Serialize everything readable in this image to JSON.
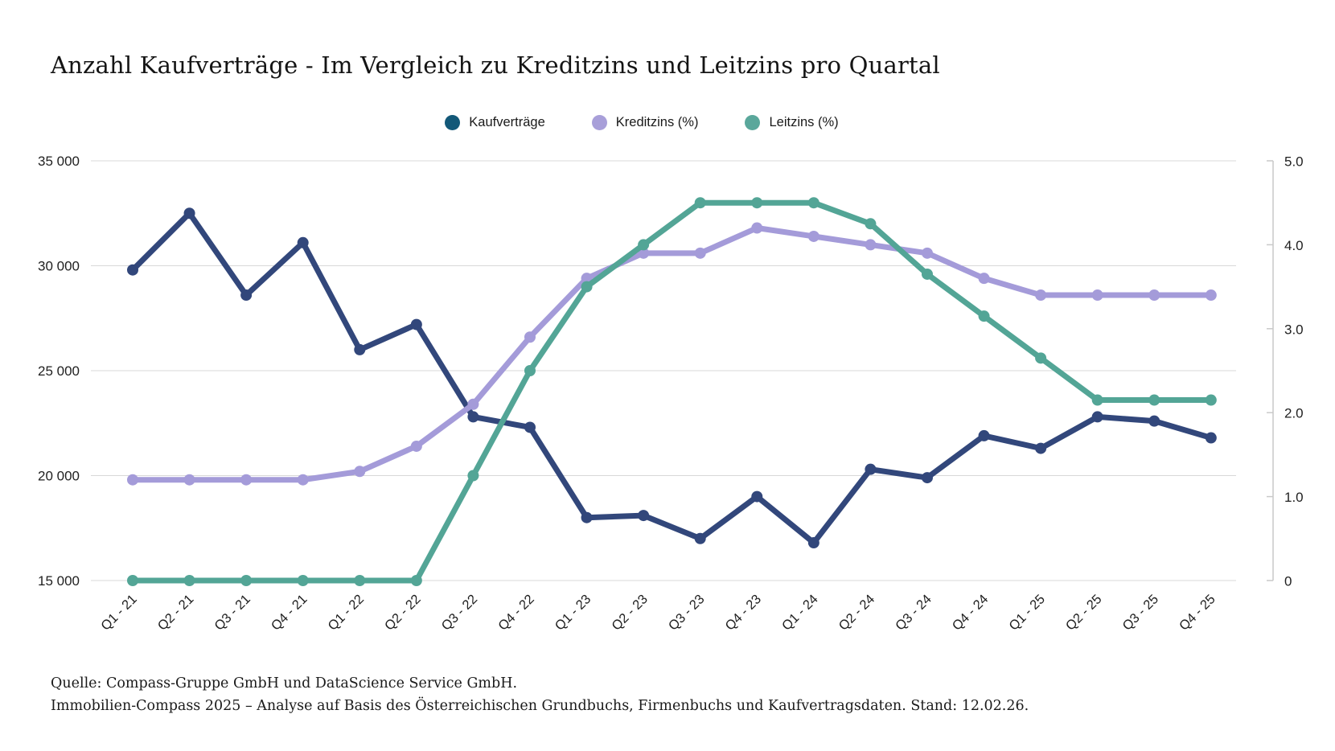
{
  "title": "Anzahl Kaufverträge - Im Vergleich zu Kreditzins und Leitzins pro Quartal",
  "legend": {
    "items": [
      {
        "label": "Kaufverträge",
        "color": "#135878"
      },
      {
        "label": "Kreditzins (%)",
        "color": "#a89fd9"
      },
      {
        "label": "Leitzins (%)",
        "color": "#5aa79b"
      }
    ]
  },
  "footer": {
    "line1": "Quelle: Compass-Gruppe GmbH und DataScience Service GmbH.",
    "line2": "Immobilien-Compass 2025 – Analyse auf Basis des Österreichischen Grundbuchs, Firmenbuchs und Kaufvertragsdaten. Stand: 12.02.26."
  },
  "chart_data": {
    "type": "line",
    "title": "Anzahl Kaufverträge - Im Vergleich zu Kreditzins und Leitzins pro Quartal",
    "categories": [
      "Q1 - 21",
      "Q2 - 21",
      "Q3 - 21",
      "Q4 - 21",
      "Q1 - 22",
      "Q2 - 22",
      "Q3 - 22",
      "Q4 - 22",
      "Q1 - 23",
      "Q2 - 23",
      "Q3 - 23",
      "Q4 - 23",
      "Q1 - 24",
      "Q2 - 24",
      "Q3 - 24",
      "Q4 - 24",
      "Q1 - 25",
      "Q2 - 25",
      "Q3 - 25",
      "Q4 - 25"
    ],
    "series": [
      {
        "name": "Kaufverträge",
        "axis": "left",
        "color": "#32477b",
        "values": [
          29800,
          32500,
          28600,
          31100,
          26000,
          27200,
          22800,
          22300,
          18000,
          18100,
          17000,
          19000,
          16800,
          20300,
          19900,
          21900,
          21300,
          22800,
          22600,
          21800
        ]
      },
      {
        "name": "Kreditzins (%)",
        "axis": "right",
        "color": "#a49bd9",
        "values": [
          1.2,
          1.2,
          1.2,
          1.2,
          1.3,
          1.6,
          2.1,
          2.9,
          3.6,
          3.9,
          3.9,
          4.2,
          4.1,
          4.0,
          3.9,
          3.6,
          3.4,
          3.4,
          3.4,
          3.4
        ]
      },
      {
        "name": "Leitzins (%)",
        "axis": "right",
        "color": "#53a596",
        "values": [
          0,
          0,
          0,
          0,
          0,
          0,
          1.25,
          2.5,
          3.5,
          4.0,
          4.5,
          4.5,
          4.5,
          4.25,
          3.65,
          3.15,
          2.65,
          2.15,
          2.15,
          2.15
        ]
      }
    ],
    "left_axis": {
      "min": 15000,
      "max": 35000,
      "ticks": [
        {
          "label": "35 000",
          "value": 35000
        },
        {
          "label": "30 000",
          "value": 30000
        },
        {
          "label": "25 000",
          "value": 25000
        },
        {
          "label": "20 000",
          "value": 20000
        },
        {
          "label": "15 000",
          "value": 15000
        }
      ]
    },
    "right_axis": {
      "min": 0,
      "max": 5,
      "ticks": [
        {
          "label": "5.0",
          "value": 5
        },
        {
          "label": "4.0",
          "value": 4
        },
        {
          "label": "3.0",
          "value": 3
        },
        {
          "label": "2.0",
          "value": 2
        },
        {
          "label": "1.0",
          "value": 1
        },
        {
          "label": "0",
          "value": 0
        }
      ]
    },
    "grid": "horizontal-only",
    "legend_position": "top-center"
  }
}
